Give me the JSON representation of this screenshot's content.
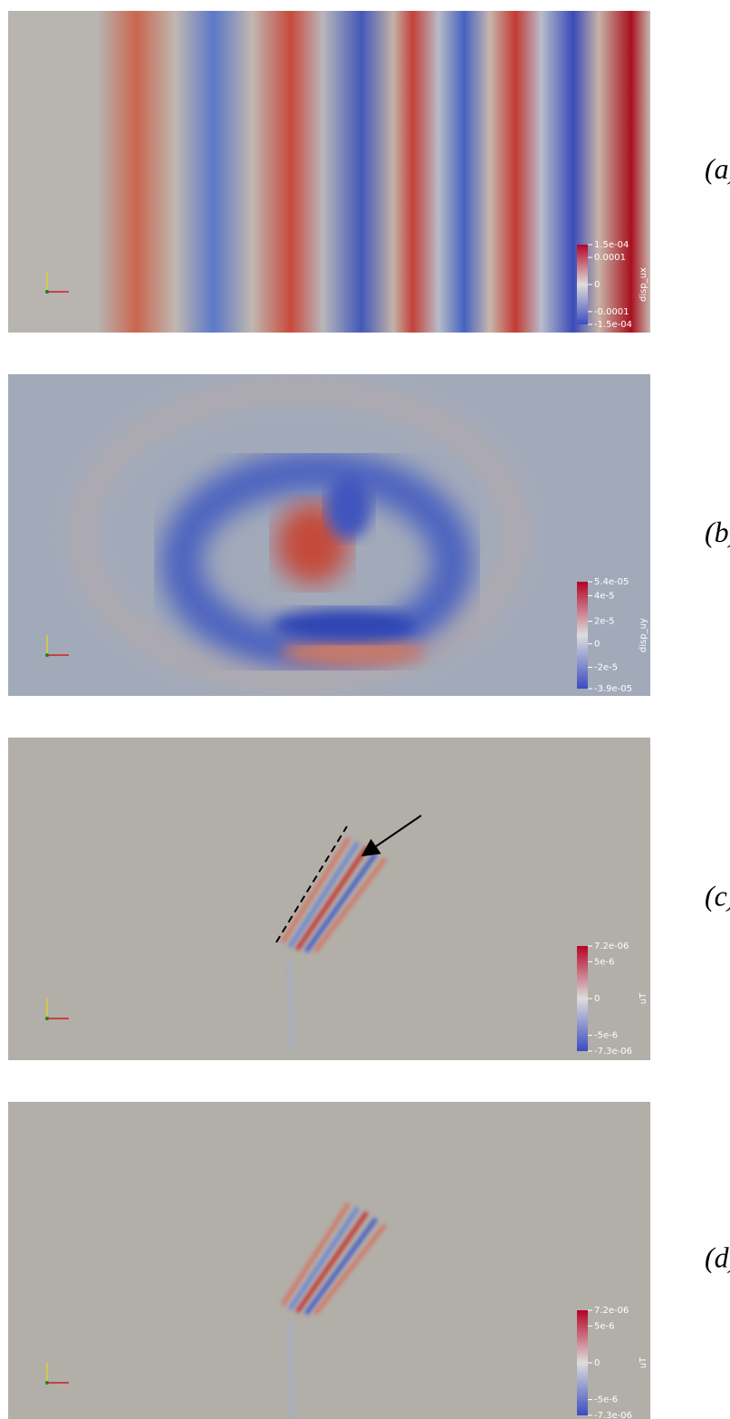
{
  "panels": [
    {
      "label": "(a)",
      "colorbar": {
        "title": "disp_ux",
        "ticks": [
          "1.5e-04",
          "0.0001",
          "0",
          "-0.0001",
          "-1.5e-04"
        ]
      }
    },
    {
      "label": "(b)",
      "colorbar": {
        "title": "disp_uy",
        "ticks": [
          "5.4e-05",
          "4e-5",
          "2e-5",
          "0",
          "-2e-5",
          "-3.9e-05"
        ]
      }
    },
    {
      "label": "(c)",
      "colorbar": {
        "title": "uT",
        "ticks": [
          "7.2e-06",
          "5e-6",
          "0",
          "-5e-6",
          "-7.3e-06"
        ]
      }
    },
    {
      "label": "(d)",
      "colorbar": {
        "title": "uT",
        "ticks": [
          "7.2e-06",
          "5e-6",
          "0",
          "-5e-6",
          "-7.3e-06"
        ]
      }
    }
  ]
}
